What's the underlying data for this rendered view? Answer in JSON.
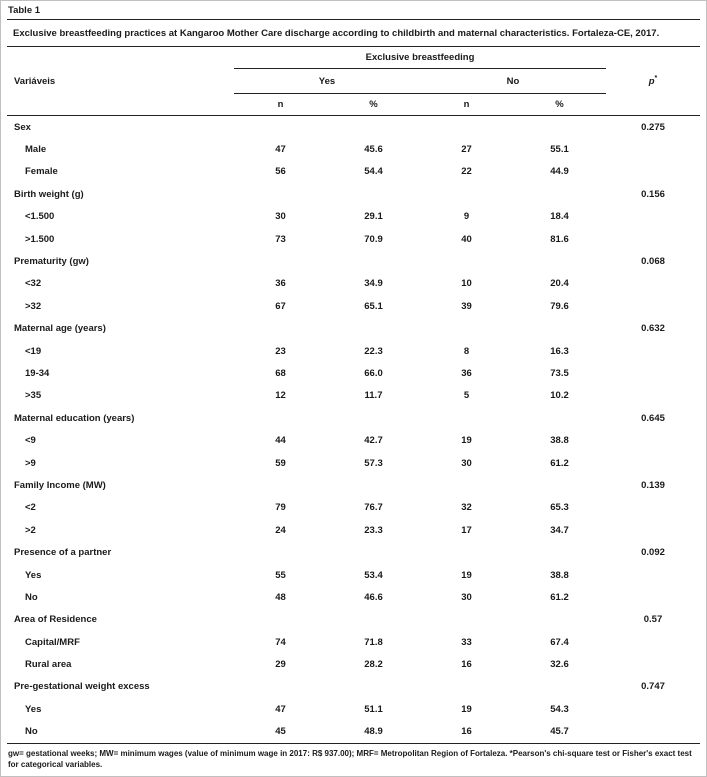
{
  "table_label": "Table 1",
  "title": "Exclusive breastfeeding practices at Kangaroo Mother Care discharge according to childbirth and maternal characteristics. Fortaleza-CE, 2017.",
  "header": {
    "variables": "Variáveis",
    "group": "Exclusive breastfeeding",
    "yes": "Yes",
    "no": "No",
    "p": "p",
    "p_sup": "*",
    "sub": [
      "n",
      "%",
      "n",
      "%"
    ]
  },
  "rows": [
    {
      "label": "Sex",
      "type": "group",
      "cells": [
        "",
        "",
        "",
        ""
      ],
      "p": "0.275"
    },
    {
      "label": "Male",
      "type": "item",
      "cells": [
        "47",
        "45.6",
        "27",
        "55.1"
      ],
      "p": ""
    },
    {
      "label": "Female",
      "type": "item",
      "cells": [
        "56",
        "54.4",
        "22",
        "44.9"
      ],
      "p": ""
    },
    {
      "label": "Birth weight (g)",
      "type": "group",
      "cells": [
        "",
        "",
        "",
        ""
      ],
      "p": "0.156"
    },
    {
      "label": "<1.500",
      "type": "item",
      "cells": [
        "30",
        "29.1",
        "9",
        "18.4"
      ],
      "p": ""
    },
    {
      "label": ">1.500",
      "type": "item",
      "cells": [
        "73",
        "70.9",
        "40",
        "81.6"
      ],
      "p": ""
    },
    {
      "label": "Prematurity (gw)",
      "type": "group",
      "cells": [
        "",
        "",
        "",
        ""
      ],
      "p": "0.068"
    },
    {
      "label": "<32",
      "type": "item",
      "cells": [
        "36",
        "34.9",
        "10",
        "20.4"
      ],
      "p": ""
    },
    {
      "label": ">32",
      "type": "item",
      "cells": [
        "67",
        "65.1",
        "39",
        "79.6"
      ],
      "p": ""
    },
    {
      "label": "Maternal age (years)",
      "type": "group",
      "cells": [
        "",
        "",
        "",
        ""
      ],
      "p": "0.632"
    },
    {
      "label": "<19",
      "type": "item",
      "cells": [
        "23",
        "22.3",
        "8",
        "16.3"
      ],
      "p": ""
    },
    {
      "label": "19-34",
      "type": "item",
      "cells": [
        "68",
        "66.0",
        "36",
        "73.5"
      ],
      "p": ""
    },
    {
      "label": ">35",
      "type": "item",
      "cells": [
        "12",
        "11.7",
        "5",
        "10.2"
      ],
      "p": ""
    },
    {
      "label": "Maternal education (years)",
      "type": "group",
      "cells": [
        "",
        "",
        "",
        ""
      ],
      "p": "0.645"
    },
    {
      "label": "<9",
      "type": "item",
      "cells": [
        "44",
        "42.7",
        "19",
        "38.8"
      ],
      "p": ""
    },
    {
      "label": ">9",
      "type": "item",
      "cells": [
        "59",
        "57.3",
        "30",
        "61.2"
      ],
      "p": ""
    },
    {
      "label": "Family Income (MW)",
      "type": "group",
      "cells": [
        "",
        "",
        "",
        ""
      ],
      "p": "0.139"
    },
    {
      "label": "<2",
      "type": "item",
      "cells": [
        "79",
        "76.7",
        "32",
        "65.3"
      ],
      "p": ""
    },
    {
      "label": ">2",
      "type": "item",
      "cells": [
        "24",
        "23.3",
        "17",
        "34.7"
      ],
      "p": ""
    },
    {
      "label": "Presence of a partner",
      "type": "group",
      "cells": [
        "",
        "",
        "",
        ""
      ],
      "p": "0.092"
    },
    {
      "label": "Yes",
      "type": "item",
      "cells": [
        "55",
        "53.4",
        "19",
        "38.8"
      ],
      "p": ""
    },
    {
      "label": "No",
      "type": "item",
      "cells": [
        "48",
        "46.6",
        "30",
        "61.2"
      ],
      "p": ""
    },
    {
      "label": "Area of Residence",
      "type": "group",
      "cells": [
        "",
        "",
        "",
        ""
      ],
      "p": "0.57"
    },
    {
      "label": "Capital/MRF",
      "type": "item",
      "cells": [
        "74",
        "71.8",
        "33",
        "67.4"
      ],
      "p": ""
    },
    {
      "label": "Rural area",
      "type": "item",
      "cells": [
        "29",
        "28.2",
        "16",
        "32.6"
      ],
      "p": ""
    },
    {
      "label": "Pre-gestational weight excess",
      "type": "group",
      "cells": [
        "",
        "",
        "",
        ""
      ],
      "p": "0.747"
    },
    {
      "label": "Yes",
      "type": "item",
      "cells": [
        "47",
        "51.1",
        "19",
        "54.3"
      ],
      "p": ""
    },
    {
      "label": "No",
      "type": "item",
      "cells": [
        "45",
        "48.9",
        "16",
        "45.7"
      ],
      "p": ""
    }
  ],
  "footnote": "gw= gestational weeks; MW= minimum wages (value of minimum wage in 2017: R$ 937.00); MRF= Metropolitan Region of Fortaleza. *Pearson's chi-square test or Fisher's exact test for categorical variables."
}
